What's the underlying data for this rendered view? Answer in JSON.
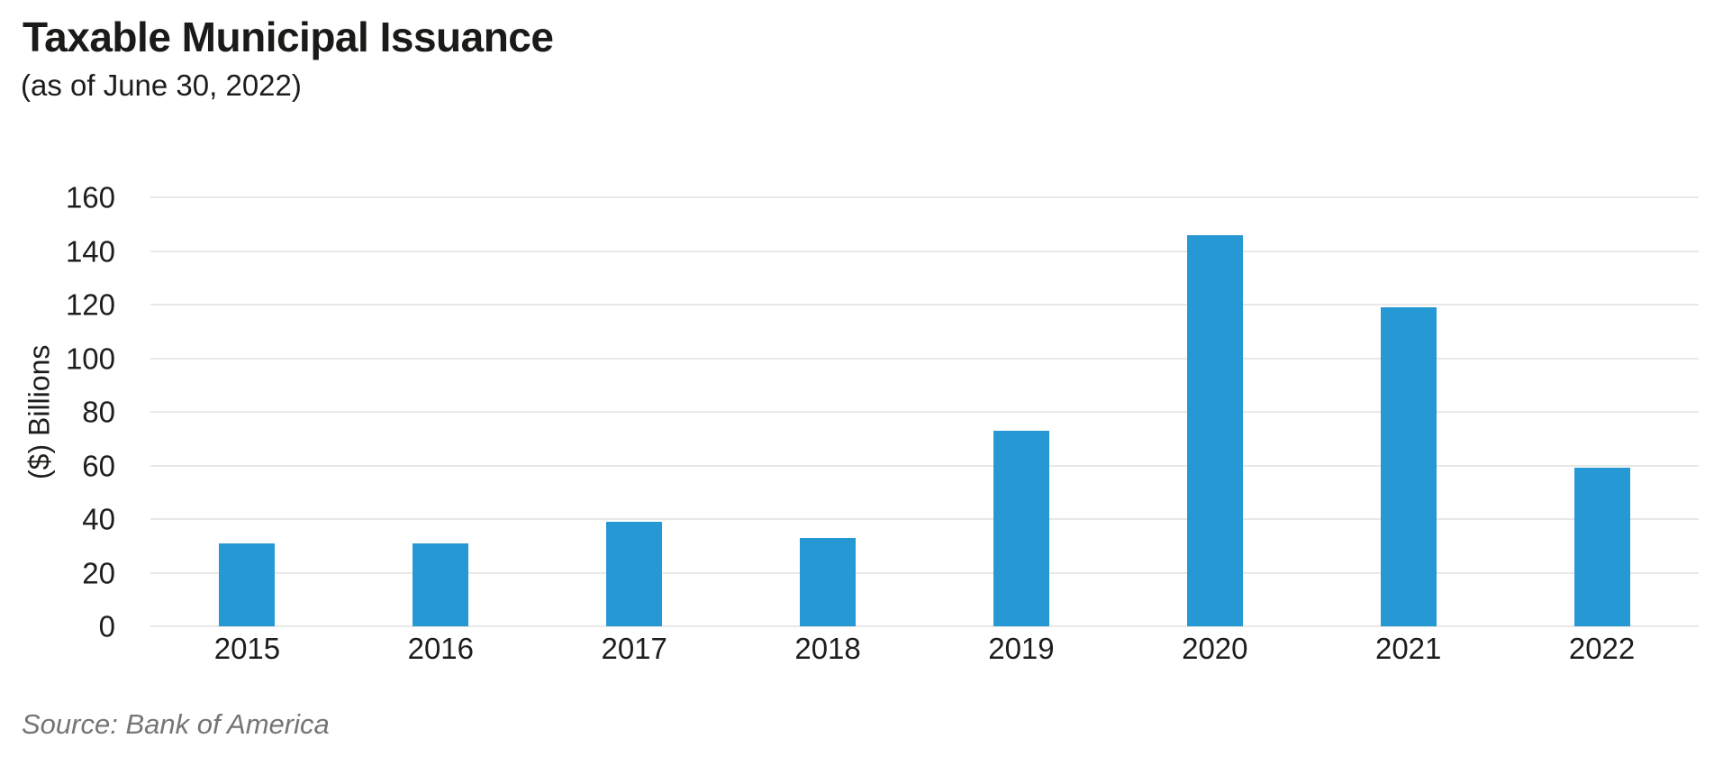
{
  "header": {
    "title": "Taxable Municipal Issuance",
    "subtitle": "(as of June 30, 2022)"
  },
  "footer": {
    "source": "Source: Bank of America"
  },
  "colors": {
    "bar": "#2699d4",
    "gridline": "#e8e8e6",
    "text": "#1d1d1b",
    "source_text": "#757575"
  },
  "chart_data": {
    "type": "bar",
    "title": "Taxable Municipal Issuance",
    "subtitle": "(as of June 30, 2022)",
    "categories": [
      "2015",
      "2016",
      "2017",
      "2018",
      "2019",
      "2020",
      "2021",
      "2022"
    ],
    "values": [
      31,
      31,
      39,
      33,
      73,
      146,
      119,
      59
    ],
    "xlabel": "",
    "ylabel": "($) Billions",
    "ylim": [
      0,
      160
    ],
    "ytick_step": 20,
    "grid": true,
    "legend": false,
    "bar_color": "#2699d4",
    "source": "Source: Bank of America"
  }
}
